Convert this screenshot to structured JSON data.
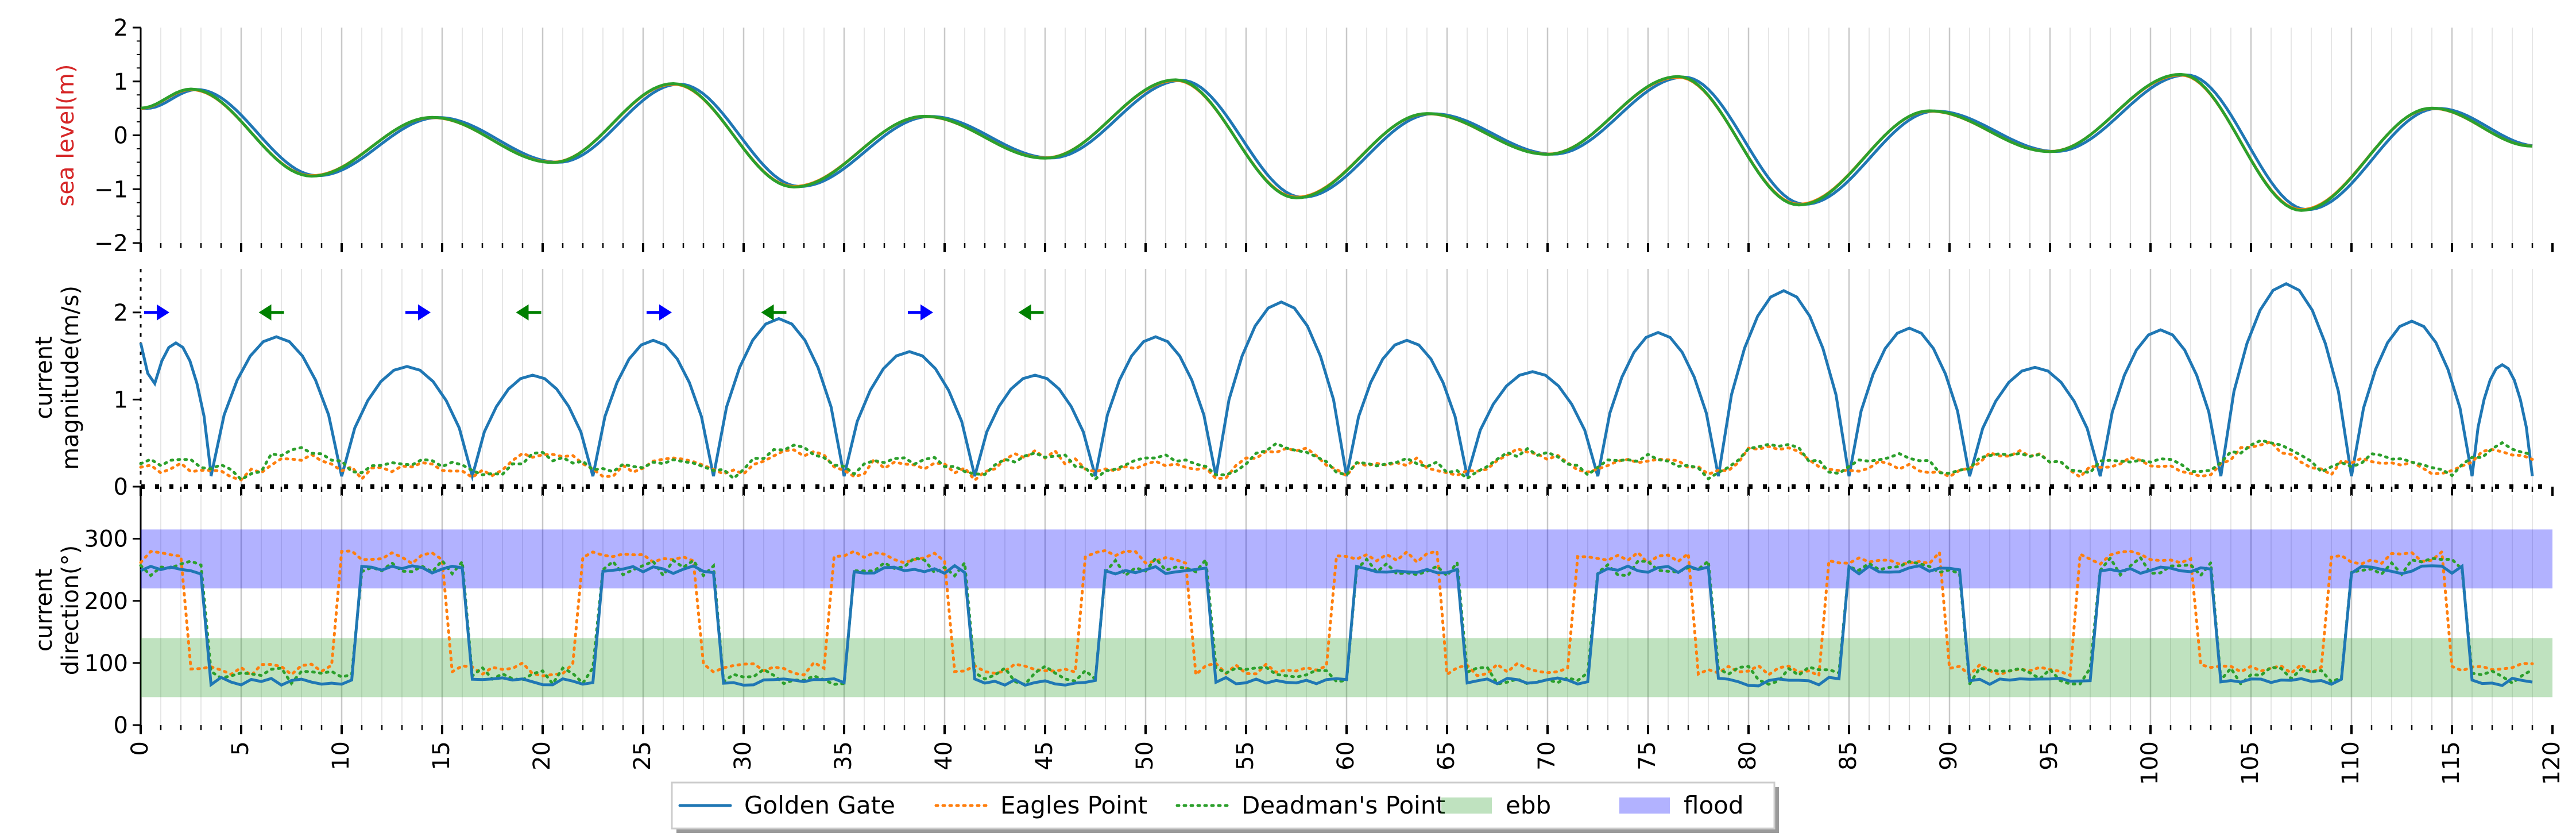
{
  "colors": {
    "golden_gate": "#1f77b4",
    "eagles_point": "#ff7f0e",
    "deadmans_point": "#2ca02c",
    "ebb": "#2ca02c",
    "flood": "#0000ff",
    "sea_level_label": "#d62728",
    "arrow_flood": "#0000ff",
    "arrow_ebb": "#008000"
  },
  "legend": {
    "placement": "bottom-center",
    "items": [
      {
        "label": "Golden Gate",
        "style": "solid",
        "color": "#1f77b4"
      },
      {
        "label": "Eagles Point",
        "style": "dotted",
        "color": "#ff7f0e"
      },
      {
        "label": "Deadman's Point",
        "style": "dotted",
        "color": "#2ca02c"
      },
      {
        "label": "ebb",
        "style": "patch",
        "color": "#2ca02c"
      },
      {
        "label": "flood",
        "style": "patch",
        "color": "#0000ff"
      }
    ]
  },
  "chart_data": [
    {
      "type": "line",
      "panel": "sea-level",
      "ylabel": "sea level(m)",
      "ylim": [
        -2,
        2
      ],
      "yticks": [
        -2,
        -1,
        0,
        1,
        2
      ],
      "xlim": [
        0,
        120
      ],
      "grid": "vertical minor gridlines every 1 hour",
      "extrema": [
        {
          "x": 0,
          "y": 0.5
        },
        {
          "x": 2.5,
          "y": 0.85
        },
        {
          "x": 8.5,
          "y": -0.75
        },
        {
          "x": 14.5,
          "y": 0.33
        },
        {
          "x": 20.5,
          "y": -0.5
        },
        {
          "x": 26.5,
          "y": 0.95
        },
        {
          "x": 32.5,
          "y": -0.95
        },
        {
          "x": 39,
          "y": 0.35
        },
        {
          "x": 45,
          "y": -0.42
        },
        {
          "x": 51.5,
          "y": 1.02
        },
        {
          "x": 57.5,
          "y": -1.15
        },
        {
          "x": 64,
          "y": 0.4
        },
        {
          "x": 70,
          "y": -0.35
        },
        {
          "x": 76.5,
          "y": 1.08
        },
        {
          "x": 82.5,
          "y": -1.28
        },
        {
          "x": 89,
          "y": 0.45
        },
        {
          "x": 95,
          "y": -0.3
        },
        {
          "x": 101.5,
          "y": 1.12
        },
        {
          "x": 107.5,
          "y": -1.38
        },
        {
          "x": 114,
          "y": 0.5
        },
        {
          "x": 119,
          "y": -0.2
        }
      ]
    },
    {
      "type": "line",
      "panel": "current-magnitude",
      "ylabel": "current\nmagnitude(m/s)",
      "ylim": [
        0,
        2.5
      ],
      "yticks": [
        0,
        1,
        2
      ],
      "xlim": [
        0,
        120
      ],
      "golden_gate_peaks": [
        1.65,
        1.72,
        1.38,
        1.28,
        1.68,
        1.93,
        1.55,
        1.28,
        1.72,
        2.12,
        1.68,
        1.32,
        1.77,
        2.25,
        1.82,
        1.37,
        1.8,
        2.33,
        1.9,
        1.4
      ],
      "golden_gate_minima_x": [
        0,
        3.5,
        10,
        16.5,
        22.5,
        28.5,
        35,
        41.5,
        47.5,
        53.5,
        60,
        66,
        72.5,
        78.5,
        85,
        91,
        97.5,
        103.5,
        110,
        116
      ],
      "eagles_point_peaks": [
        0.22,
        0.35,
        0.25,
        0.38,
        0.28,
        0.4,
        0.26,
        0.38,
        0.3,
        0.45,
        0.3,
        0.4,
        0.3,
        0.45,
        0.25,
        0.4,
        0.3,
        0.48,
        0.3,
        0.42
      ],
      "deadmans_point_peaks": [
        0.3,
        0.42,
        0.3,
        0.35,
        0.3,
        0.45,
        0.3,
        0.38,
        0.32,
        0.45,
        0.32,
        0.4,
        0.32,
        0.48,
        0.35,
        0.42,
        0.32,
        0.48,
        0.35,
        0.45
      ],
      "direction_arrows": [
        {
          "x": 0.8,
          "dir": "right",
          "color": "#0000ff"
        },
        {
          "x": 6.5,
          "dir": "left",
          "color": "#008000"
        },
        {
          "x": 13.8,
          "dir": "right",
          "color": "#0000ff"
        },
        {
          "x": 19.3,
          "dir": "left",
          "color": "#008000"
        },
        {
          "x": 25.8,
          "dir": "right",
          "color": "#0000ff"
        },
        {
          "x": 31.5,
          "dir": "left",
          "color": "#008000"
        },
        {
          "x": 38.8,
          "dir": "right",
          "color": "#0000ff"
        },
        {
          "x": 44.3,
          "dir": "left",
          "color": "#008000"
        }
      ]
    },
    {
      "type": "line",
      "panel": "current-direction",
      "ylabel": "current\ndirection(°)",
      "ylim": [
        0,
        370
      ],
      "yticks": [
        0,
        100,
        200,
        300
      ],
      "xlim": [
        0,
        120
      ],
      "xticks": [
        0,
        5,
        10,
        15,
        20,
        25,
        30,
        35,
        40,
        45,
        50,
        55,
        60,
        65,
        70,
        75,
        80,
        85,
        90,
        95,
        100,
        105,
        110,
        115,
        120
      ],
      "bands": [
        {
          "label": "ebb",
          "y": [
            45,
            140
          ],
          "color": "#2ca02c"
        },
        {
          "label": "flood",
          "y": [
            220,
            315
          ],
          "color": "#0000ff"
        }
      ],
      "golden_gate_flood_level": 250,
      "golden_gate_ebb_level": 70,
      "eagles_point_flood_level": 270,
      "eagles_point_ebb_level": 90,
      "deadmans_point_flood_level": 255,
      "deadmans_point_ebb_level": 80,
      "golden_gate_transitions_to_flood_x": [
        11,
        23,
        35.5,
        48,
        60.5,
        72.5,
        85,
        97.5,
        110
      ],
      "golden_gate_transitions_to_ebb_x": [
        3.5,
        16.5,
        29,
        41.5,
        53.5,
        66,
        78.5,
        91,
        103.5,
        116
      ]
    }
  ]
}
